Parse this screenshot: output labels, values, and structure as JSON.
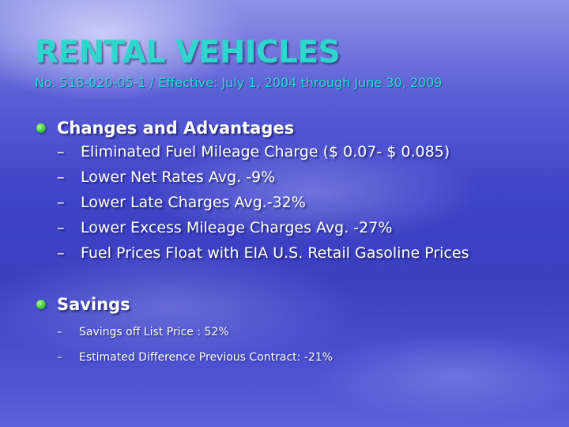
{
  "slide": {
    "title": "RENTAL VEHICLES",
    "subtitle": "No. 518-020-05-1 / Effective: July 1, 2004 through June 30, 2009",
    "sections": [
      {
        "heading": "Changes and Advantages",
        "items": [
          "Eliminated Fuel Mileage Charge ($ 0.07- $ 0.085)",
          "Lower Net Rates Avg. -9%",
          "Lower Late Charges Avg.-32%",
          "Lower Excess Mileage Charges Avg. -27%",
          "Fuel Prices Float with EIA U.S. Retail Gasoline Prices"
        ]
      },
      {
        "heading": "Savings",
        "items": [
          "Savings off List Price : 52%",
          "Estimated Difference Previous Contract: -21%"
        ]
      }
    ]
  },
  "glyphs": {
    "dash": "–"
  },
  "colors": {
    "title": "#2fd6cc",
    "text": "#ffffff",
    "bullet": "#36c83a"
  }
}
